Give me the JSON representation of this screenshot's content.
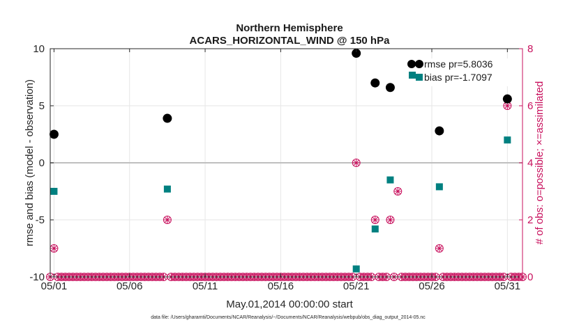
{
  "chart_data": {
    "type": "scatter",
    "title": "Northern Hemisphere",
    "subtitle": "ACARS_HORIZONTAL_WIND @ 150 hPa",
    "xlabel": "May.01,2014 00:00:00 start",
    "ylabel": "rmse and bias (model - observation)",
    "y2label": "# of obs: o=possible; ×=assimilated",
    "footnote": "data file: /Users/gharamti/Documents/NCAR/Reanalysis/~/Documents/NCAR/Reanalysis/webpub/obs_diag_output_2014-05.nc",
    "xlim": [
      0.75,
      32.0
    ],
    "ylim": [
      -10,
      10
    ],
    "y2lim": [
      0,
      8
    ],
    "xticks": [
      1,
      6,
      11,
      16,
      21,
      26,
      31
    ],
    "xtick_labels": [
      "05/01",
      "05/06",
      "05/11",
      "05/16",
      "05/21",
      "05/26",
      "05/31"
    ],
    "yticks": [
      -10,
      -5,
      0,
      5,
      10
    ],
    "ytick_labels": [
      "-10",
      "-5",
      "0",
      "5",
      "10"
    ],
    "y2ticks": [
      0,
      2,
      4,
      6,
      8
    ],
    "y2tick_labels": [
      "0",
      "2",
      "4",
      "6",
      "8"
    ],
    "grid": true,
    "legend_position": "top-right",
    "series": [
      {
        "name": "rmse pr=5.8036",
        "axis": "left",
        "color": "#000000",
        "marker": "circle",
        "points": [
          [
            1.0,
            2.5
          ],
          [
            8.5,
            3.9
          ],
          [
            21.0,
            9.6
          ],
          [
            22.25,
            7.0
          ],
          [
            23.25,
            6.6
          ],
          [
            26.5,
            2.8
          ],
          [
            31.0,
            5.6
          ]
        ]
      },
      {
        "name": "bias pr=-1.7097",
        "axis": "left",
        "color": "#008080",
        "marker": "square",
        "points": [
          [
            1.0,
            -2.5
          ],
          [
            8.5,
            -2.3
          ],
          [
            21.0,
            -9.3
          ],
          [
            22.25,
            -5.8
          ],
          [
            23.25,
            -1.5
          ],
          [
            26.5,
            -2.1
          ],
          [
            31.0,
            2.0
          ]
        ]
      },
      {
        "name": "possible obs",
        "axis": "right",
        "color": "#c8105d",
        "marker": "circle-open",
        "points": [
          [
            1.0,
            1
          ],
          [
            8.5,
            2
          ],
          [
            21.0,
            4
          ],
          [
            22.25,
            2
          ],
          [
            23.25,
            2
          ],
          [
            23.75,
            3
          ],
          [
            26.5,
            1
          ],
          [
            31.0,
            6
          ]
        ]
      },
      {
        "name": "assimilated obs",
        "axis": "right",
        "color": "#c8105d",
        "marker": "cross",
        "points": [
          [
            1.0,
            1
          ],
          [
            8.5,
            2
          ],
          [
            21.0,
            4
          ],
          [
            22.25,
            2
          ],
          [
            23.25,
            2
          ],
          [
            23.75,
            3
          ],
          [
            26.5,
            1
          ],
          [
            31.0,
            6
          ]
        ]
      }
    ],
    "legend": [
      {
        "label": "rmse pr=5.8036",
        "color": "#000000",
        "marker": "circle"
      },
      {
        "label": "bias pr=-1.7097",
        "color": "#008080",
        "marker": "square"
      }
    ],
    "colors": {
      "axis": "#262626",
      "right_axis": "#c8105d",
      "grid": "#e6e6e6",
      "zero_line": "#bfbfbf"
    }
  }
}
